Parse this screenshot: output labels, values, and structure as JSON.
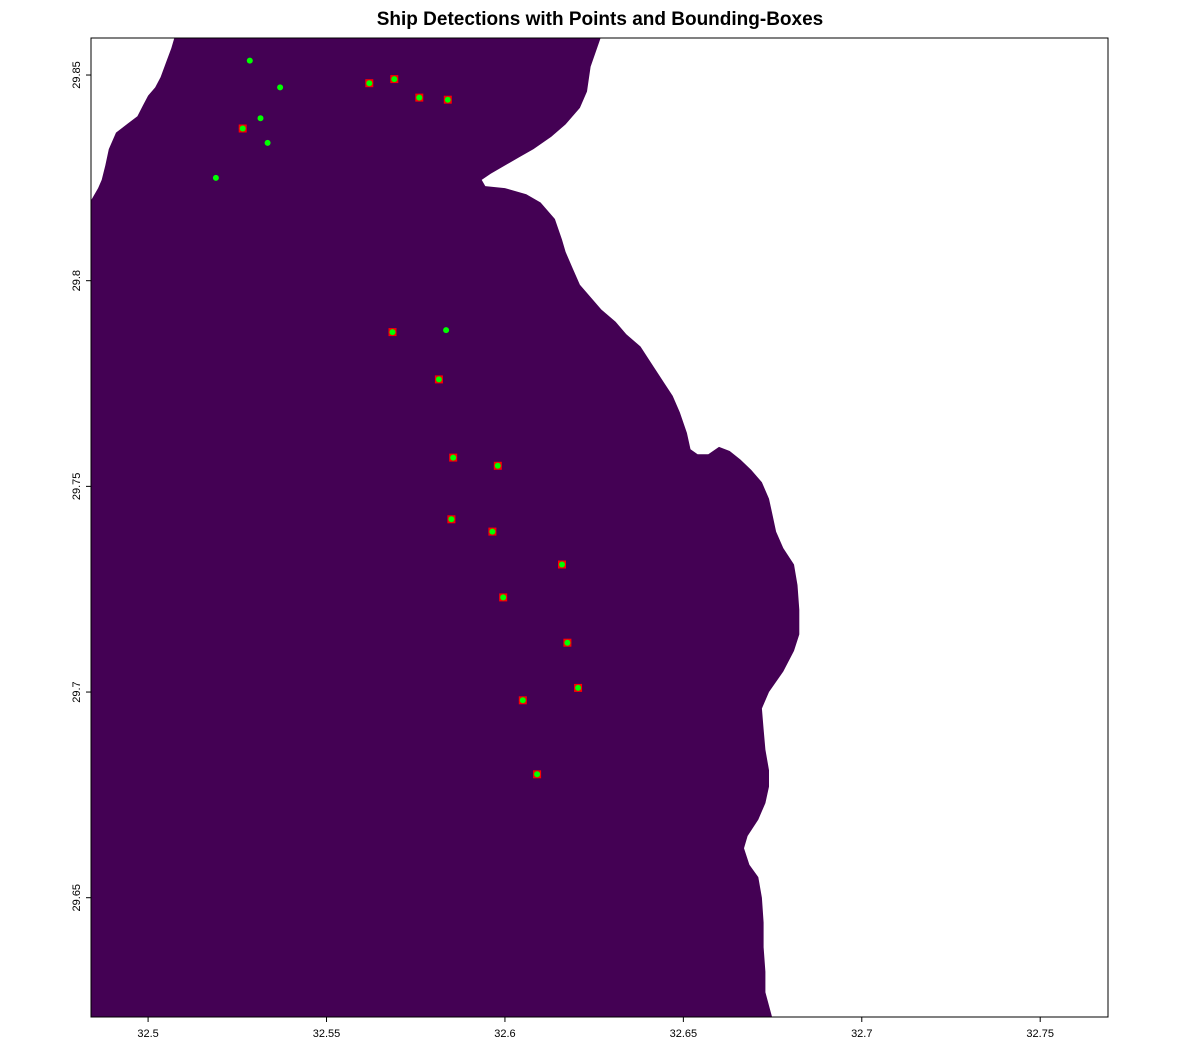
{
  "title": "Ship Detections with Points and Bounding-Boxes",
  "colors": {
    "water": "#440154",
    "land": "#ffffff",
    "point": "#00ff00",
    "box": "#ff0000",
    "axis": "#000000"
  },
  "map": {
    "xlim": [
      32.484,
      32.769
    ],
    "ylim": [
      29.621,
      29.859
    ],
    "x_ticks": [
      {
        "value": 32.5,
        "label": "32.5"
      },
      {
        "value": 32.55,
        "label": "32.55"
      },
      {
        "value": 32.6,
        "label": "32.6"
      },
      {
        "value": 32.65,
        "label": "32.65"
      },
      {
        "value": 32.7,
        "label": "32.7"
      },
      {
        "value": 32.75,
        "label": "32.75"
      }
    ],
    "y_ticks": [
      {
        "value": 29.65,
        "label": "29.65"
      },
      {
        "value": 29.7,
        "label": "29.7"
      },
      {
        "value": 29.75,
        "label": "29.75"
      },
      {
        "value": 29.8,
        "label": "29.8"
      },
      {
        "value": 29.85,
        "label": "29.85"
      }
    ],
    "coastline_right": [
      [
        32.627,
        29.859
      ],
      [
        32.624,
        29.852
      ],
      [
        32.623,
        29.846
      ],
      [
        32.621,
        29.842
      ],
      [
        32.617,
        29.838
      ],
      [
        32.613,
        29.835
      ],
      [
        32.608,
        29.832
      ],
      [
        32.604,
        29.83
      ],
      [
        32.6,
        29.828
      ],
      [
        32.596,
        29.826
      ],
      [
        32.5935,
        29.8245
      ],
      [
        32.5945,
        29.823
      ],
      [
        32.6,
        29.8225
      ],
      [
        32.606,
        29.821
      ],
      [
        32.61,
        29.819
      ],
      [
        32.614,
        29.815
      ],
      [
        32.616,
        29.81
      ],
      [
        32.617,
        29.807
      ],
      [
        32.619,
        29.803
      ],
      [
        32.621,
        29.799
      ],
      [
        32.624,
        29.796
      ],
      [
        32.627,
        29.793
      ],
      [
        32.631,
        29.79
      ],
      [
        32.634,
        29.787
      ],
      [
        32.638,
        29.784
      ],
      [
        32.641,
        29.78
      ],
      [
        32.644,
        29.776
      ],
      [
        32.647,
        29.772
      ],
      [
        32.649,
        29.768
      ],
      [
        32.651,
        29.763
      ],
      [
        32.652,
        29.759
      ],
      [
        32.654,
        29.7578
      ],
      [
        32.657,
        29.7578
      ],
      [
        32.66,
        29.7596
      ],
      [
        32.663,
        29.7586
      ],
      [
        32.666,
        29.7565
      ],
      [
        32.669,
        29.754
      ],
      [
        32.672,
        29.751
      ],
      [
        32.674,
        29.747
      ],
      [
        32.675,
        29.743
      ],
      [
        32.676,
        29.739
      ],
      [
        32.678,
        29.735
      ],
      [
        32.681,
        29.731
      ],
      [
        32.682,
        29.726
      ],
      [
        32.6825,
        29.72
      ],
      [
        32.6825,
        29.714
      ],
      [
        32.681,
        29.71
      ],
      [
        32.678,
        29.705
      ],
      [
        32.674,
        29.7
      ],
      [
        32.672,
        29.696
      ],
      [
        32.6725,
        29.691
      ],
      [
        32.673,
        29.686
      ],
      [
        32.674,
        29.681
      ],
      [
        32.674,
        29.677
      ],
      [
        32.673,
        29.673
      ],
      [
        32.671,
        29.669
      ],
      [
        32.668,
        29.665
      ],
      [
        32.667,
        29.662
      ],
      [
        32.6685,
        29.658
      ],
      [
        32.671,
        29.655
      ],
      [
        32.672,
        29.65
      ],
      [
        32.6725,
        29.644
      ],
      [
        32.6725,
        29.638
      ],
      [
        32.673,
        29.632
      ],
      [
        32.673,
        29.627
      ],
      [
        32.675,
        29.621
      ]
    ],
    "coastline_left": [
      [
        32.484,
        29.8195
      ],
      [
        32.486,
        29.8225
      ],
      [
        32.487,
        29.8245
      ],
      [
        32.488,
        29.828
      ],
      [
        32.489,
        29.832
      ],
      [
        32.491,
        29.836
      ],
      [
        32.494,
        29.838
      ],
      [
        32.497,
        29.84
      ],
      [
        32.4985,
        29.8425
      ],
      [
        32.5,
        29.845
      ],
      [
        32.502,
        29.847
      ],
      [
        32.5035,
        29.8495
      ],
      [
        32.505,
        29.853
      ],
      [
        32.5065,
        29.8565
      ],
      [
        32.5075,
        29.859
      ]
    ],
    "ships": [
      {
        "lon": 32.5285,
        "lat": 29.8535,
        "box": false
      },
      {
        "lon": 32.537,
        "lat": 29.847,
        "box": false
      },
      {
        "lon": 32.562,
        "lat": 29.848,
        "box": true
      },
      {
        "lon": 32.569,
        "lat": 29.849,
        "box": true
      },
      {
        "lon": 32.576,
        "lat": 29.8445,
        "box": true
      },
      {
        "lon": 32.584,
        "lat": 29.844,
        "box": true
      },
      {
        "lon": 32.5315,
        "lat": 29.8395,
        "box": false
      },
      {
        "lon": 32.5265,
        "lat": 29.837,
        "box": true
      },
      {
        "lon": 32.5335,
        "lat": 29.8335,
        "box": false
      },
      {
        "lon": 32.519,
        "lat": 29.825,
        "box": false
      },
      {
        "lon": 32.5685,
        "lat": 29.7875,
        "box": true
      },
      {
        "lon": 32.5835,
        "lat": 29.788,
        "box": false
      },
      {
        "lon": 32.5815,
        "lat": 29.776,
        "box": true
      },
      {
        "lon": 32.5855,
        "lat": 29.757,
        "box": true
      },
      {
        "lon": 32.598,
        "lat": 29.755,
        "box": true
      },
      {
        "lon": 32.585,
        "lat": 29.742,
        "box": true
      },
      {
        "lon": 32.5965,
        "lat": 29.739,
        "box": true
      },
      {
        "lon": 32.616,
        "lat": 29.731,
        "box": true
      },
      {
        "lon": 32.5995,
        "lat": 29.723,
        "box": true
      },
      {
        "lon": 32.6175,
        "lat": 29.712,
        "box": true
      },
      {
        "lon": 32.6205,
        "lat": 29.701,
        "box": true
      },
      {
        "lon": 32.605,
        "lat": 29.698,
        "box": true
      },
      {
        "lon": 32.609,
        "lat": 29.68,
        "box": true
      }
    ]
  }
}
